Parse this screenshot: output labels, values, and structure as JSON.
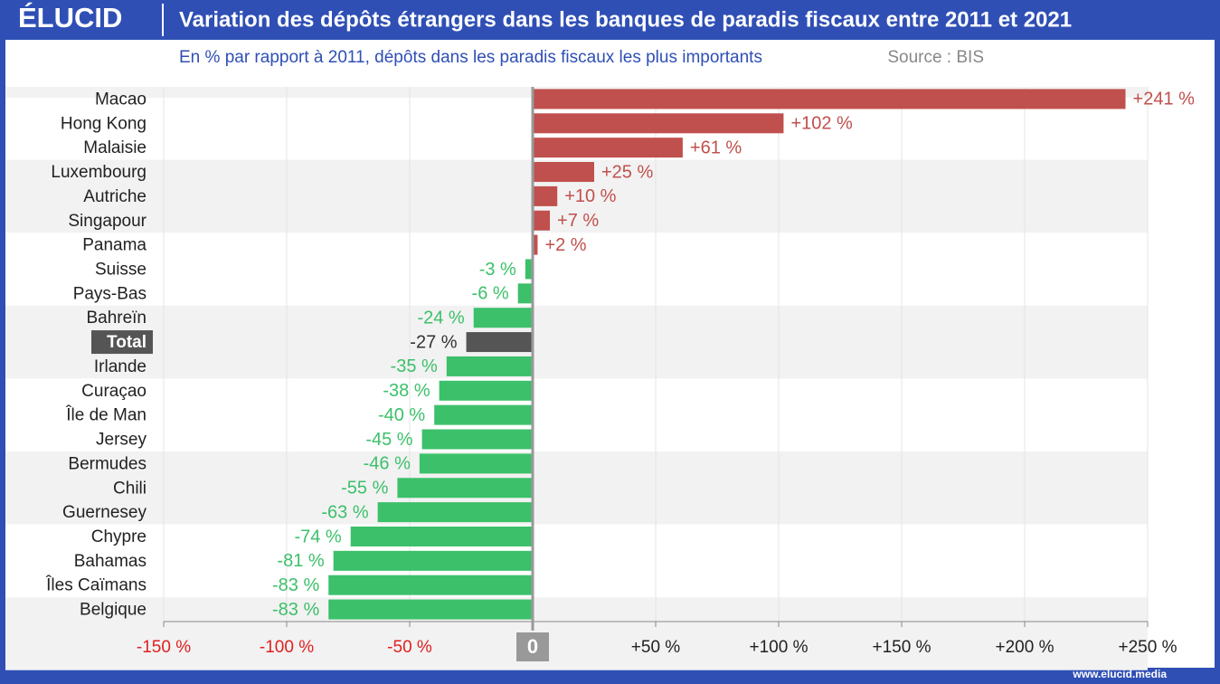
{
  "logo": "ÉLUCID",
  "footer": "www.elucid.media",
  "chart_data": {
    "type": "hbar",
    "title": "Variation des dépôts étrangers dans les banques de paradis fiscaux entre 2011 et 2021",
    "subtitle": "En % par rapport à 2011, dépôts dans les paradis fiscaux les plus importants",
    "source": "Source : BIS",
    "categories": [
      "Macao",
      "Hong Kong",
      "Malaisie",
      "Luxembourg",
      "Autriche",
      "Singapour",
      "Panama",
      "Suisse",
      "Pays-Bas",
      "Bahreïn",
      "Total",
      "Irlande",
      "Curaçao",
      "Île de Man",
      "Jersey",
      "Bermudes",
      "Chili",
      "Guernesey",
      "Chypre",
      "Bahamas",
      "Îles Caïmans",
      "Belgique"
    ],
    "values": [
      241,
      102,
      61,
      25,
      10,
      7,
      2,
      -3,
      -6,
      -24,
      -27,
      -35,
      -38,
      -40,
      -45,
      -46,
      -55,
      -63,
      -74,
      -81,
      -83,
      -83
    ],
    "value_labels": [
      "+241 %",
      "+102 %",
      "+61 %",
      "+25 %",
      "+10 %",
      "+7 %",
      "+2 %",
      "-3 %",
      "-6 %",
      "-24 %",
      "-27 %",
      "-35 %",
      "-38 %",
      "-40 %",
      "-45 %",
      "-46 %",
      "-55 %",
      "-63 %",
      "-74 %",
      "-81 %",
      "-83 %",
      "-83 %"
    ],
    "colors": [
      "#c0504d",
      "#c0504d",
      "#c0504d",
      "#c0504d",
      "#c0504d",
      "#c0504d",
      "#c0504d",
      "#3cc06a",
      "#3cc06a",
      "#3cc06a",
      "#555555",
      "#3cc06a",
      "#3cc06a",
      "#3cc06a",
      "#3cc06a",
      "#3cc06a",
      "#3cc06a",
      "#3cc06a",
      "#3cc06a",
      "#3cc06a",
      "#3cc06a",
      "#3cc06a"
    ],
    "xlim": [
      -150,
      250
    ],
    "xticks": [
      {
        "value": -150,
        "label": "-150 %"
      },
      {
        "value": -100,
        "label": "-100 %"
      },
      {
        "value": -50,
        "label": "-50 %"
      },
      0,
      {
        "value": 50,
        "label": "+50 %"
      },
      {
        "value": 100,
        "label": "+100 %"
      },
      {
        "value": 150,
        "label": "+150 %"
      },
      {
        "value": 200,
        "label": "+200 %"
      },
      {
        "value": 250,
        "label": "+250 %"
      }
    ],
    "grid": true
  }
}
